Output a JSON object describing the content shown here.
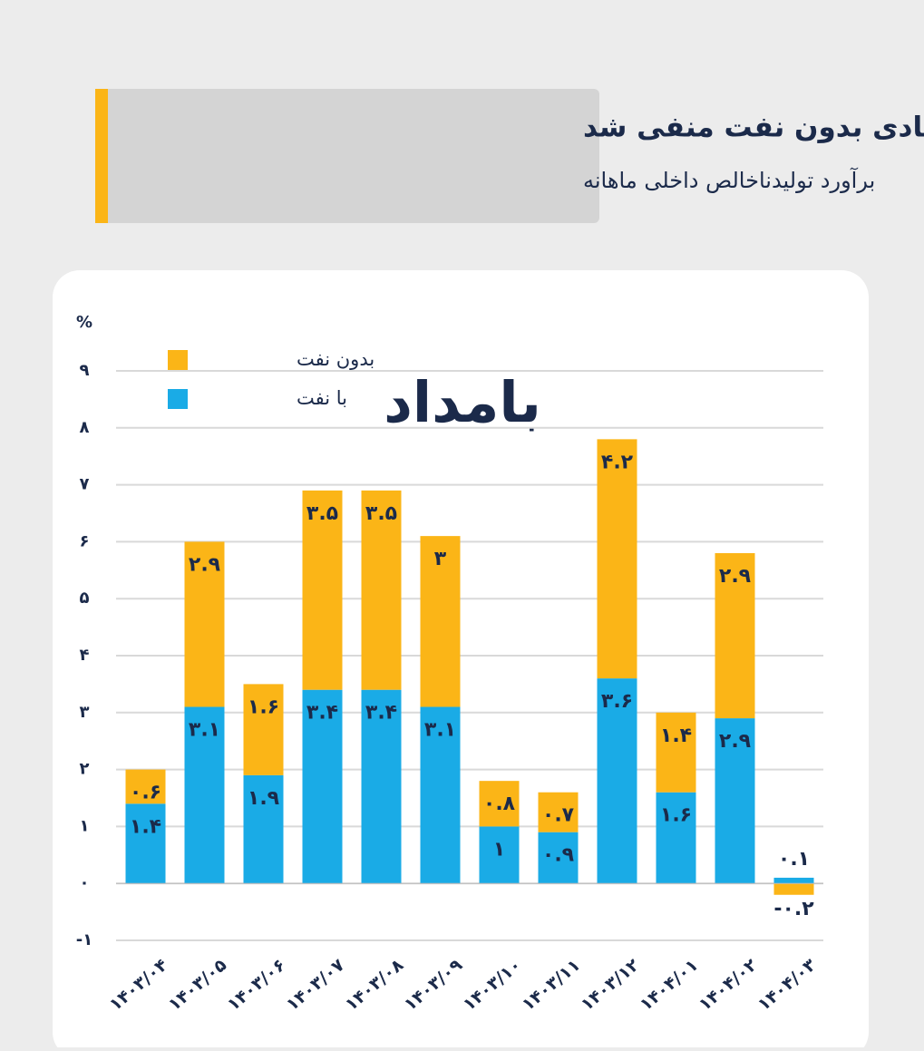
{
  "chart_data": {
    "type": "bar",
    "stacked": true,
    "title": "رشد اقتصادی بدون نفت منفی شد",
    "subtitle": "برآورد تولیدناخالص داخلی ماهانه",
    "logo": "بامداد",
    "y_label": "%",
    "categories": [
      "۱۴۰۳/۰۴",
      "۱۴۰۳/۰۵",
      "۱۴۰۳/۰۶",
      "۱۴۰۳/۰۷",
      "۱۴۰۳/۰۸",
      "۱۴۰۳/۰۹",
      "۱۴۰۳/۱۰",
      "۱۴۰۳/۱۱",
      "۱۴۰۳/۱۲",
      "۱۴۰۴/۰۱",
      "۱۴۰۴/۰۲",
      "۱۴۰۴/۰۳"
    ],
    "series": [
      {
        "name": "با نفت",
        "color": "#1aabe6",
        "values": [
          1.4,
          3.1,
          1.9,
          3.4,
          3.4,
          3.1,
          1,
          0.9,
          3.6,
          1.6,
          2.9,
          0.1
        ],
        "value_labels": [
          "۱.۴",
          "۳.۱",
          "۱.۹",
          "۳.۴",
          "۳.۴",
          "۳.۱",
          "۱",
          "۰.۹",
          "۳.۶",
          "۱.۶",
          "۲.۹",
          "۰.۱"
        ]
      },
      {
        "name": "بدون نفت",
        "color": "#fbb517",
        "values": [
          0.6,
          2.9,
          1.6,
          3.5,
          3.5,
          3,
          0.8,
          0.7,
          4.2,
          1.4,
          2.9,
          -0.2
        ],
        "value_labels": [
          "۰.۶",
          "۲.۹",
          "۱.۶",
          "۳.۵",
          "۳.۵",
          "۳",
          "۰.۸",
          "۰.۷",
          "۴.۲",
          "۱.۴",
          "۲.۹",
          "-۰.۲"
        ]
      }
    ],
    "ylim": [
      -1,
      9
    ],
    "yticks": [
      {
        "value": -1,
        "label": "-۱"
      },
      {
        "value": 0,
        "label": "۰"
      },
      {
        "value": 1,
        "label": "۱"
      },
      {
        "value": 2,
        "label": "۲"
      },
      {
        "value": 3,
        "label": "۳"
      },
      {
        "value": 4,
        "label": "۴"
      },
      {
        "value": 5,
        "label": "۵"
      },
      {
        "value": 6,
        "label": "۶"
      },
      {
        "value": 7,
        "label": "۷"
      },
      {
        "value": 8,
        "label": "۸"
      },
      {
        "value": 9,
        "label": "۹"
      }
    ],
    "grid": true,
    "legend": "top-left"
  }
}
